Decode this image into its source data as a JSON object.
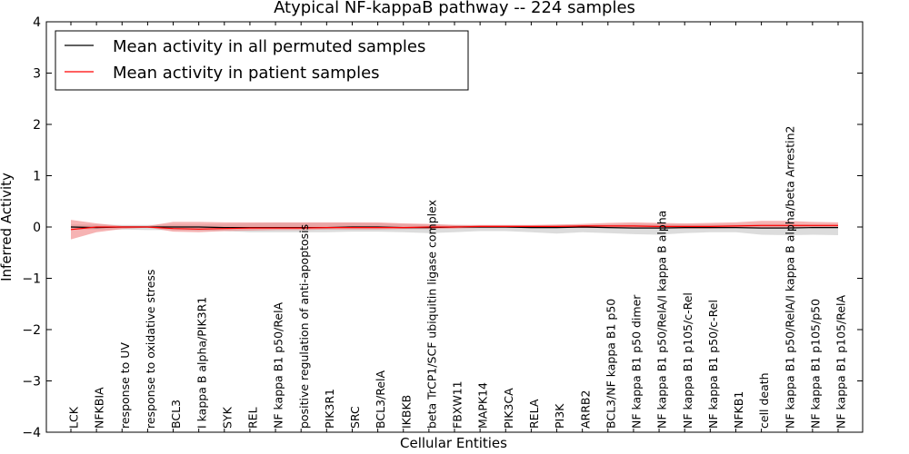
{
  "chart_data": {
    "type": "line",
    "title": "Atypical NF-kappaB pathway -- 224 samples",
    "xlabel": "Cellular Entities",
    "ylabel": "Inferred Activity",
    "ylim": [
      -4,
      4
    ],
    "yticks": [
      -4,
      -3,
      -2,
      -1,
      0,
      1,
      2,
      3,
      4
    ],
    "ytick_labels": [
      "−4",
      "−3",
      "−2",
      "−1",
      "0",
      "1",
      "2",
      "3",
      "4"
    ],
    "grid": false,
    "legend_position": "top-left",
    "categories": [
      "LCK",
      "NFKBIA",
      "response to UV",
      "response to oxidative stress",
      "BCL3",
      "I kappa B alpha/PIK3R1",
      "SYK",
      "REL",
      "NF kappa B1 p50/RelA",
      "positive regulation of anti-apoptosis",
      "PIK3R1",
      "SRC",
      "BCL3/RelA",
      "IKBKB",
      "beta TrCP1/SCF ubiquitin ligase complex",
      "FBXW11",
      "MAPK14",
      "PIK3CA",
      "RELA",
      "PI3K",
      "ARRB2",
      "BCL3/NF kappa B1 p50",
      "NF kappa B1 p50 dimer",
      "NF kappa B1 p50/RelA/I kappa B alpha",
      "NF kappa B1 p105/c-Rel",
      "NF kappa B1 p50/c-Rel",
      "NFKB1",
      "cell death",
      "NF kappa B1 p50/RelA/I kappa B alpha/beta Arrestin2",
      "NF kappa B1 p105/p50",
      "NF kappa B1 p105/RelA"
    ],
    "series": [
      {
        "name": "Mean activity in all permuted samples",
        "color": "#000000",
        "band_color": "#bfbfbf",
        "values": [
          0.0,
          -0.01,
          0.0,
          0.0,
          0.0,
          0.0,
          -0.01,
          -0.01,
          -0.01,
          -0.01,
          -0.01,
          0.0,
          0.0,
          -0.01,
          -0.01,
          0.0,
          0.0,
          0.0,
          -0.01,
          -0.01,
          0.0,
          -0.01,
          -0.02,
          -0.02,
          -0.01,
          -0.01,
          -0.01,
          -0.02,
          -0.02,
          -0.01,
          -0.01
        ],
        "band_lower": [
          -0.05,
          -0.05,
          -0.05,
          -0.06,
          -0.06,
          -0.07,
          -0.08,
          -0.1,
          -0.1,
          -0.1,
          -0.1,
          -0.09,
          -0.09,
          -0.1,
          -0.12,
          -0.1,
          -0.08,
          -0.08,
          -0.1,
          -0.13,
          -0.1,
          -0.12,
          -0.14,
          -0.15,
          -0.12,
          -0.1,
          -0.1,
          -0.15,
          -0.16,
          -0.15,
          -0.16
        ],
        "band_upper": [
          0.05,
          0.05,
          0.04,
          0.04,
          0.05,
          0.05,
          0.06,
          0.07,
          0.08,
          0.08,
          0.08,
          0.08,
          0.07,
          0.06,
          0.05,
          0.04,
          0.03,
          0.03,
          0.03,
          0.04,
          0.04,
          0.05,
          0.06,
          0.06,
          0.05,
          0.05,
          0.05,
          0.06,
          0.06,
          0.05,
          0.05
        ]
      },
      {
        "name": "Mean activity in patient samples",
        "color": "#ff0000",
        "band_color": "#f08080",
        "values": [
          -0.05,
          0.0,
          0.0,
          0.0,
          -0.03,
          -0.04,
          -0.03,
          -0.02,
          -0.02,
          -0.02,
          -0.01,
          -0.01,
          -0.01,
          -0.01,
          0.0,
          0.0,
          0.01,
          0.01,
          0.01,
          0.01,
          0.02,
          0.02,
          0.02,
          0.01,
          0.01,
          0.01,
          0.02,
          0.03,
          0.03,
          0.03,
          0.03
        ],
        "band_lower": [
          -0.24,
          -0.1,
          -0.04,
          -0.01,
          -0.09,
          -0.1,
          -0.08,
          -0.07,
          -0.06,
          -0.06,
          -0.05,
          -0.05,
          -0.05,
          -0.04,
          -0.04,
          -0.03,
          -0.02,
          -0.02,
          -0.02,
          -0.02,
          -0.02,
          -0.02,
          -0.02,
          -0.03,
          -0.03,
          -0.03,
          -0.02,
          -0.02,
          -0.02,
          -0.02,
          -0.02
        ],
        "band_upper": [
          0.14,
          0.07,
          0.02,
          0.02,
          0.1,
          0.1,
          0.09,
          0.09,
          0.09,
          0.09,
          0.09,
          0.09,
          0.09,
          0.07,
          0.06,
          0.04,
          0.04,
          0.04,
          0.04,
          0.05,
          0.06,
          0.08,
          0.09,
          0.08,
          0.07,
          0.08,
          0.09,
          0.12,
          0.12,
          0.1,
          0.09
        ]
      }
    ]
  }
}
